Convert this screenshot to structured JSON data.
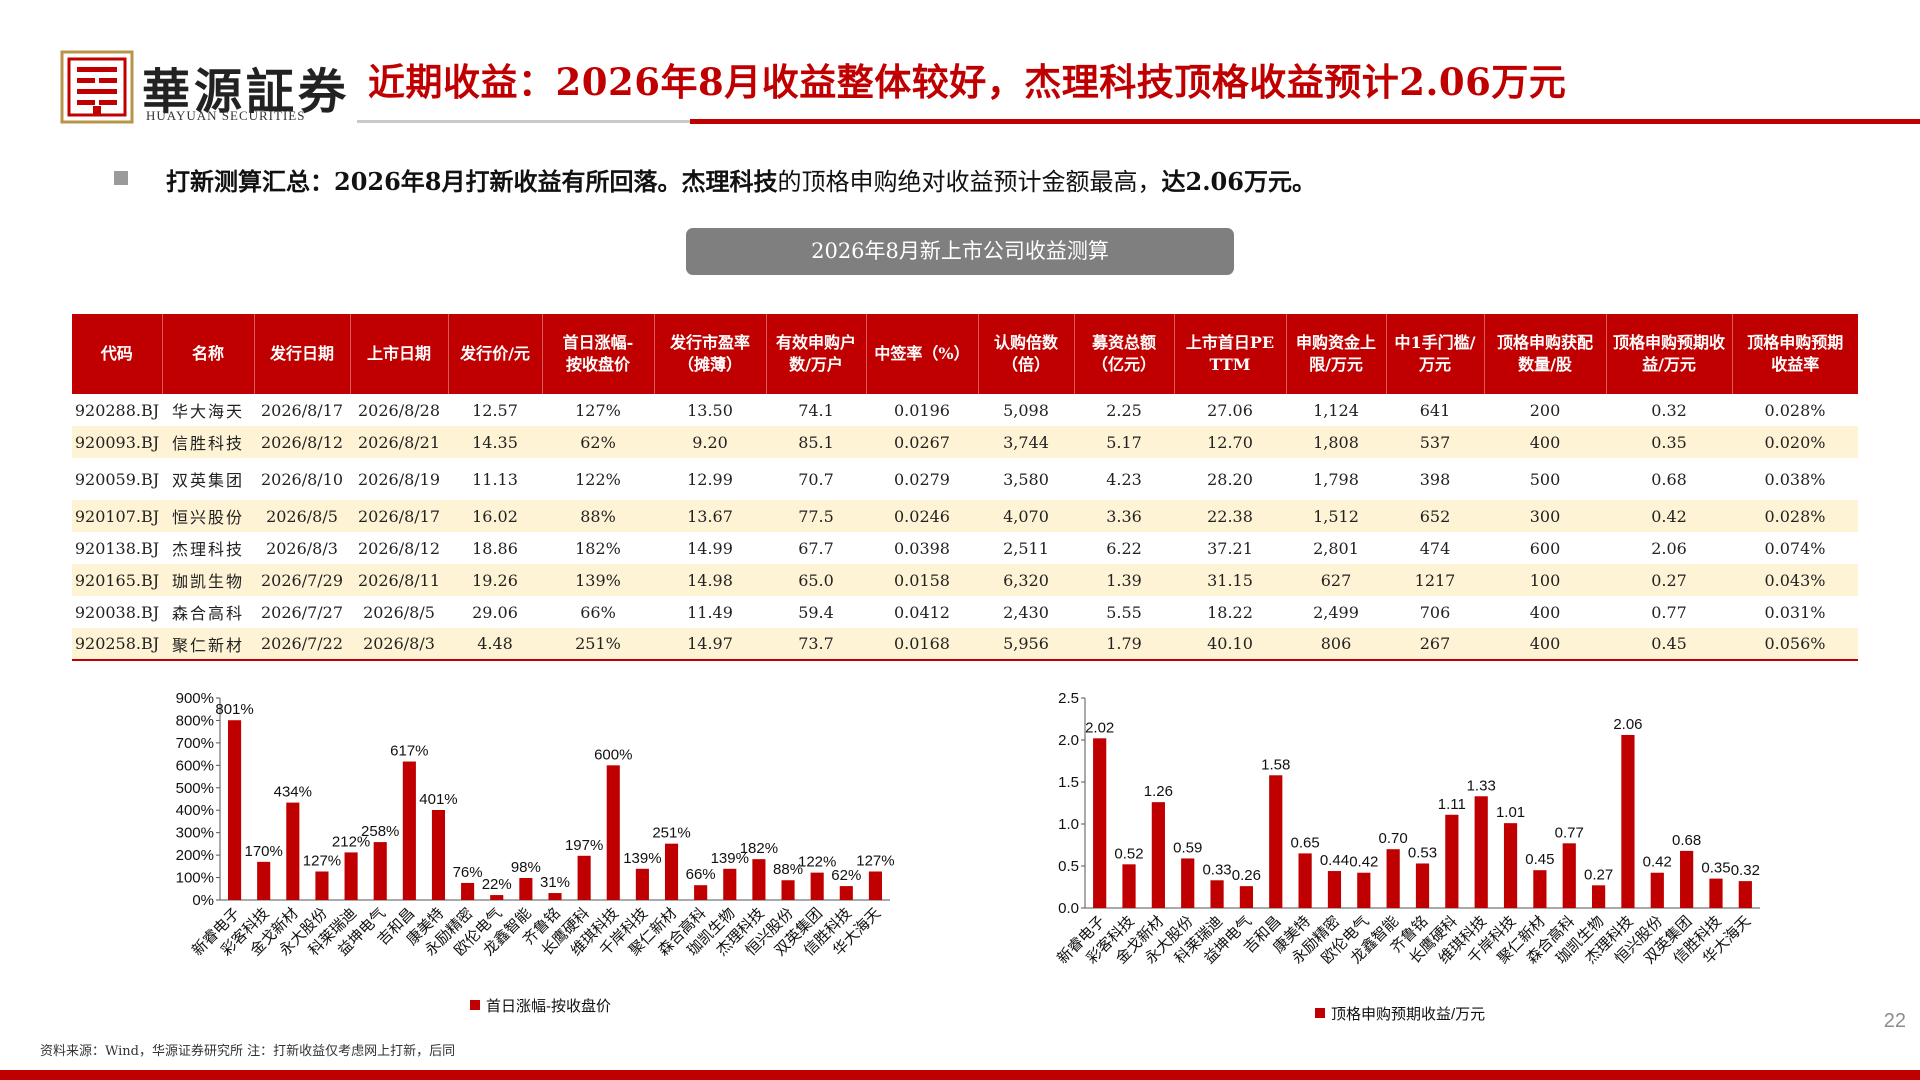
{
  "brand": {
    "name_cn": "華源証券",
    "name_en": "HUAYUAN SECURITIES"
  },
  "title": "近期收益：2026年8月收益整体较好，杰理科技顶格收益预计2.06万元",
  "summary": {
    "part1": "打新测算汇总：2026年8月打新收益有所回落。杰理科技",
    "part2": "的顶格申购绝对收益预计金额最高，",
    "part3": "达2.06万元。"
  },
  "table": {
    "caption": "2026年8月新上市公司收益测算",
    "headers": [
      "代码",
      "名称",
      "发行日期",
      "上市日期",
      "发行价/元",
      "首日涨幅-按收盘价",
      "发行市盈率（摊薄）",
      "有效申购户数/万户",
      "中签率（%）",
      "认购倍数（倍）",
      "募资总额（亿元）",
      "上市首日PE TTM",
      "申购资金上限/万元",
      "中1手门槛/万元",
      "顶格申购获配数量/股",
      "顶格申购预期收益/万元",
      "顶格申购预期收益率"
    ],
    "rows": [
      [
        "920288.BJ",
        "华大海天",
        "2026/8/17",
        "2026/8/28",
        "12.57",
        "127%",
        "13.50",
        "74.1",
        "0.0196",
        "5,098",
        "2.25",
        "27.06",
        "1,124",
        "641",
        "200",
        "0.32",
        "0.028%"
      ],
      [
        "920093.BJ",
        "信胜科技",
        "2026/8/12",
        "2026/8/21",
        "14.35",
        "62%",
        "9.20",
        "85.1",
        "0.0267",
        "3,744",
        "5.17",
        "12.70",
        "1,808",
        "537",
        "400",
        "0.35",
        "0.020%"
      ],
      [
        "920059.BJ",
        "双英集团",
        "2026/8/10",
        "2026/8/19",
        "11.13",
        "122%",
        "12.99",
        "70.7",
        "0.0279",
        "3,580",
        "4.23",
        "28.20",
        "1,798",
        "398",
        "500",
        "0.68",
        "0.038%"
      ],
      [
        "920107.BJ",
        "恒兴股份",
        "2026/8/5",
        "2026/8/17",
        "16.02",
        "88%",
        "13.67",
        "77.5",
        "0.0246",
        "4,070",
        "3.36",
        "22.38",
        "1,512",
        "652",
        "300",
        "0.42",
        "0.028%"
      ],
      [
        "920138.BJ",
        "杰理科技",
        "2026/8/3",
        "2026/8/12",
        "18.86",
        "182%",
        "14.99",
        "67.7",
        "0.0398",
        "2,511",
        "6.22",
        "37.21",
        "2,801",
        "474",
        "600",
        "2.06",
        "0.074%"
      ],
      [
        "920165.BJ",
        "珈凯生物",
        "2026/7/29",
        "2026/8/11",
        "19.26",
        "139%",
        "14.98",
        "65.0",
        "0.0158",
        "6,320",
        "1.39",
        "31.15",
        "627",
        "1217",
        "100",
        "0.27",
        "0.043%"
      ],
      [
        "920038.BJ",
        "森合高科",
        "2026/7/27",
        "2026/8/5",
        "29.06",
        "66%",
        "11.49",
        "59.4",
        "0.0412",
        "2,430",
        "5.55",
        "18.22",
        "2,499",
        "706",
        "400",
        "0.77",
        "0.031%"
      ],
      [
        "920258.BJ",
        "聚仁新材",
        "2026/7/22",
        "2026/8/3",
        "4.48",
        "251%",
        "14.97",
        "73.7",
        "0.0168",
        "5,956",
        "1.79",
        "40.10",
        "806",
        "267",
        "400",
        "0.45",
        "0.056%"
      ]
    ]
  },
  "chart_data": [
    {
      "type": "bar",
      "categories": [
        "新睿电子",
        "彩客科技",
        "金戈新材",
        "永大股份",
        "科莱瑞迪",
        "益坤电气",
        "吉和昌",
        "康美特",
        "永励精密",
        "欧伦电气",
        "龙鑫智能",
        "齐鲁铭",
        "长鹰硬科",
        "维琪科技",
        "千岸科技",
        "聚仁新材",
        "森合高科",
        "珈凯生物",
        "杰理科技",
        "恒兴股份",
        "双英集团",
        "信胜科技",
        "华大海天"
      ],
      "series": [
        {
          "name": "首日涨幅-按收盘价",
          "values": [
            801,
            170,
            434,
            127,
            212,
            258,
            617,
            401,
            76,
            22,
            98,
            31,
            197,
            600,
            139,
            251,
            66,
            139,
            182,
            88,
            122,
            62,
            127
          ]
        }
      ],
      "value_labels": [
        "801%",
        "170%",
        "434%",
        "127%",
        "212%",
        "258%",
        "617%",
        "401%",
        "76%",
        "22%",
        "98%",
        "31%",
        "197%",
        "600%",
        "139%",
        "251%",
        "66%",
        "139%",
        "182%",
        "88%",
        "122%",
        "62%",
        "127%"
      ],
      "y_ticks": [
        "0%",
        "100%",
        "200%",
        "300%",
        "400%",
        "500%",
        "600%",
        "700%",
        "800%",
        "900%"
      ],
      "ylim": [
        0,
        900
      ],
      "color": "#c00000",
      "legend": "bottom"
    },
    {
      "type": "bar",
      "categories": [
        "新睿电子",
        "彩客科技",
        "金戈新材",
        "永大股份",
        "科莱瑞迪",
        "益坤电气",
        "吉和昌",
        "康美特",
        "永励精密",
        "欧伦电气",
        "龙鑫智能",
        "齐鲁铭",
        "长鹰硬科",
        "维琪科技",
        "千岸科技",
        "聚仁新材",
        "森合高科",
        "珈凯生物",
        "杰理科技",
        "恒兴股份",
        "双英集团",
        "信胜科技",
        "华大海天"
      ],
      "series": [
        {
          "name": "顶格申购预期收益/万元",
          "values": [
            2.02,
            0.52,
            1.26,
            0.59,
            0.33,
            0.26,
            1.58,
            0.65,
            0.44,
            0.42,
            0.7,
            0.53,
            1.11,
            1.33,
            1.01,
            0.45,
            0.77,
            0.27,
            2.06,
            0.42,
            0.68,
            0.35,
            0.32
          ]
        }
      ],
      "value_labels": [
        "2.02",
        "0.52",
        "1.26",
        "0.59",
        "0.33",
        "0.26",
        "1.58",
        "0.65",
        "0.44",
        "0.42",
        "0.70",
        "0.53",
        "1.11",
        "1.33",
        "1.01",
        "0.45",
        "0.77",
        "0.27",
        "2.06",
        "0.42",
        "0.68",
        "0.35",
        "0.32"
      ],
      "y_ticks": [
        "0.0",
        "0.5",
        "1.0",
        "1.5",
        "2.0",
        "2.5"
      ],
      "ylim": [
        0,
        2.5
      ],
      "color": "#c00000",
      "legend": "bottom"
    }
  ],
  "footer": {
    "source": "资料来源：Wind，华源证券研究所 注：打新收益仅考虑网上打新，后同",
    "page": "22"
  }
}
